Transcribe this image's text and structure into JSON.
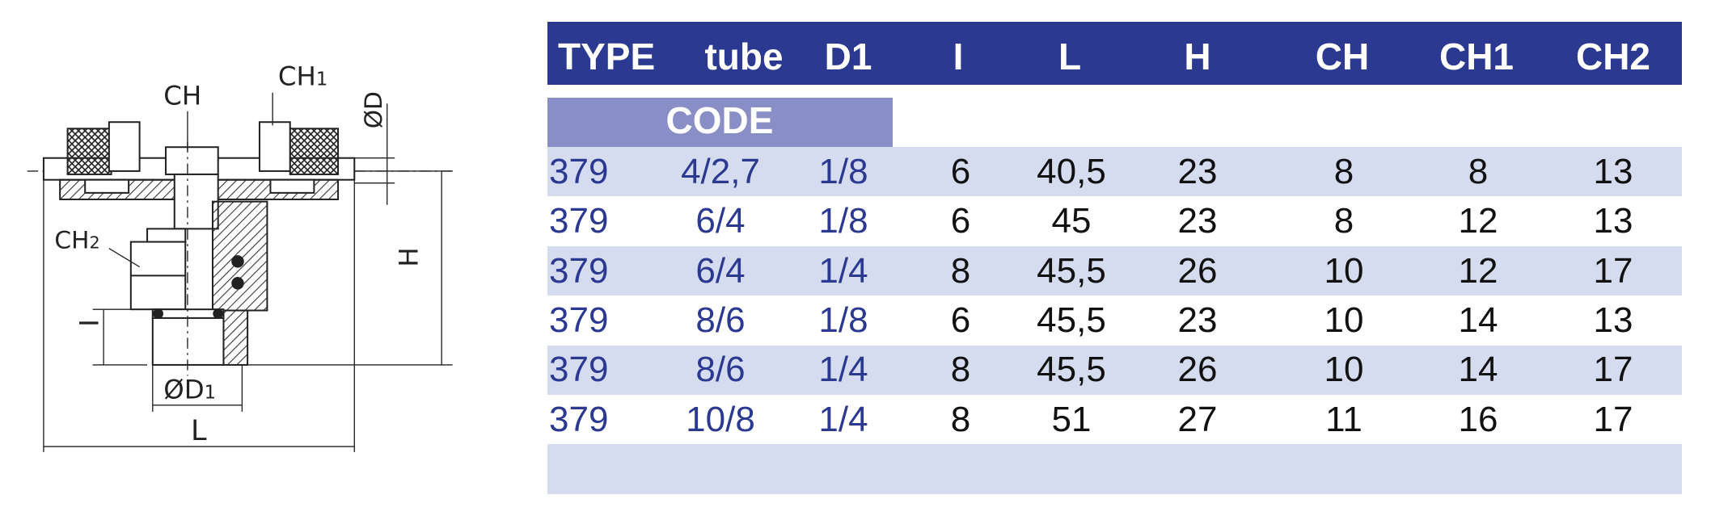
{
  "drawing": {
    "labels": [
      {
        "base": "CH",
        "sub": ""
      },
      {
        "base": "CH",
        "sub": "1"
      },
      {
        "base": "CH",
        "sub": "2"
      },
      {
        "base": "ØD",
        "sub": ""
      },
      {
        "base": "H",
        "sub": ""
      },
      {
        "base": "I",
        "sub": ""
      },
      {
        "base": "ØD",
        "sub": "1"
      },
      {
        "base": "L",
        "sub": ""
      }
    ]
  },
  "table": {
    "headers": [
      "TYPE",
      "tube",
      "D1",
      "I",
      "L",
      "H",
      "CH",
      "CH1",
      "CH2"
    ],
    "code": "CODE",
    "rows": [
      [
        "379",
        "4/2,7",
        "1/8",
        "6",
        "40,5",
        "23",
        "8",
        "8",
        "13"
      ],
      [
        "379",
        "6/4",
        "1/8",
        "6",
        "45",
        "23",
        "8",
        "12",
        "13"
      ],
      [
        "379",
        "6/4",
        "1/4",
        "8",
        "45,5",
        "26",
        "10",
        "12",
        "17"
      ],
      [
        "379",
        "8/6",
        "1/8",
        "6",
        "45,5",
        "23",
        "10",
        "14",
        "13"
      ],
      [
        "379",
        "8/6",
        "1/4",
        "8",
        "45,5",
        "26",
        "10",
        "14",
        "17"
      ],
      [
        "379",
        "10/8",
        "1/4",
        "8",
        "51",
        "27",
        "11",
        "16",
        "17"
      ]
    ]
  }
}
